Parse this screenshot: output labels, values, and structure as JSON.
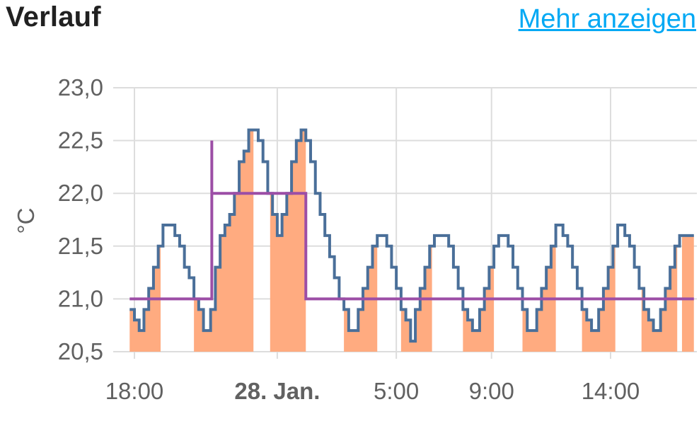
{
  "header": {
    "title": "Verlauf",
    "more_link": "Mehr anzeigen"
  },
  "colors": {
    "temperature": "#4a6f99",
    "target": "#9c4ea6",
    "heating_fill": "#ffab80",
    "grid": "#dddddd",
    "text": "#616161",
    "link": "#03a9f4"
  },
  "chart_data": {
    "type": "line",
    "ylabel": "°C",
    "ylim": [
      20.5,
      23.0
    ],
    "y_ticks": [
      "23,0",
      "22,5",
      "22,0",
      "21,5",
      "21,0",
      "20,5"
    ],
    "x_ticks": [
      {
        "label": "18:00",
        "t": 0,
        "bold": false
      },
      {
        "label": "28. Jan.",
        "t": 6,
        "bold": true
      },
      {
        "label": "5:00",
        "t": 11,
        "bold": false
      },
      {
        "label": "9:00",
        "t": 15,
        "bold": false
      },
      {
        "label": "14:00",
        "t": 20,
        "bold": false
      }
    ],
    "x_unit": "hours after 18:00",
    "xlim": [
      -0.25,
      23.5
    ],
    "grid": true,
    "series": [
      {
        "key": "temperature",
        "style": "step",
        "points": [
          [
            -0.2,
            20.9
          ],
          [
            0.0,
            20.8
          ],
          [
            0.2,
            20.7
          ],
          [
            0.4,
            20.9
          ],
          [
            0.6,
            21.1
          ],
          [
            0.8,
            21.3
          ],
          [
            1.0,
            21.5
          ],
          [
            1.2,
            21.7
          ],
          [
            1.7,
            21.6
          ],
          [
            1.9,
            21.5
          ],
          [
            2.1,
            21.3
          ],
          [
            2.3,
            21.2
          ],
          [
            2.5,
            21.0
          ],
          [
            2.7,
            20.9
          ],
          [
            2.9,
            20.7
          ],
          [
            3.2,
            20.9
          ],
          [
            3.4,
            21.3
          ],
          [
            3.6,
            21.6
          ],
          [
            3.8,
            21.7
          ],
          [
            4.0,
            21.8
          ],
          [
            4.2,
            22.0
          ],
          [
            4.4,
            22.3
          ],
          [
            4.6,
            22.4
          ],
          [
            4.8,
            22.6
          ],
          [
            5.2,
            22.5
          ],
          [
            5.4,
            22.3
          ],
          [
            5.6,
            22.0
          ],
          [
            5.8,
            21.8
          ],
          [
            6.0,
            21.6
          ],
          [
            6.2,
            21.8
          ],
          [
            6.4,
            22.0
          ],
          [
            6.6,
            22.3
          ],
          [
            6.8,
            22.5
          ],
          [
            7.0,
            22.6
          ],
          [
            7.2,
            22.5
          ],
          [
            7.4,
            22.3
          ],
          [
            7.6,
            22.0
          ],
          [
            7.8,
            21.8
          ],
          [
            8.0,
            21.6
          ],
          [
            8.2,
            21.4
          ],
          [
            8.4,
            21.2
          ],
          [
            8.6,
            21.0
          ],
          [
            8.8,
            20.9
          ],
          [
            9.0,
            20.7
          ],
          [
            9.4,
            20.9
          ],
          [
            9.6,
            21.1
          ],
          [
            9.8,
            21.3
          ],
          [
            10.0,
            21.5
          ],
          [
            10.2,
            21.6
          ],
          [
            10.6,
            21.5
          ],
          [
            10.8,
            21.3
          ],
          [
            11.0,
            21.1
          ],
          [
            11.2,
            20.9
          ],
          [
            11.4,
            20.8
          ],
          [
            11.6,
            20.6
          ],
          [
            11.8,
            20.9
          ],
          [
            12.0,
            21.1
          ],
          [
            12.2,
            21.3
          ],
          [
            12.4,
            21.5
          ],
          [
            12.6,
            21.6
          ],
          [
            13.2,
            21.5
          ],
          [
            13.4,
            21.3
          ],
          [
            13.6,
            21.1
          ],
          [
            13.8,
            20.9
          ],
          [
            14.0,
            20.8
          ],
          [
            14.2,
            20.7
          ],
          [
            14.5,
            20.9
          ],
          [
            14.7,
            21.1
          ],
          [
            14.9,
            21.3
          ],
          [
            15.1,
            21.5
          ],
          [
            15.3,
            21.6
          ],
          [
            15.7,
            21.5
          ],
          [
            15.9,
            21.3
          ],
          [
            16.1,
            21.1
          ],
          [
            16.3,
            20.9
          ],
          [
            16.5,
            20.7
          ],
          [
            16.9,
            20.9
          ],
          [
            17.1,
            21.1
          ],
          [
            17.3,
            21.3
          ],
          [
            17.5,
            21.5
          ],
          [
            17.7,
            21.7
          ],
          [
            18.0,
            21.6
          ],
          [
            18.2,
            21.5
          ],
          [
            18.4,
            21.3
          ],
          [
            18.6,
            21.1
          ],
          [
            18.8,
            20.9
          ],
          [
            19.0,
            20.8
          ],
          [
            19.2,
            20.7
          ],
          [
            19.5,
            20.9
          ],
          [
            19.7,
            21.1
          ],
          [
            19.9,
            21.3
          ],
          [
            20.1,
            21.5
          ],
          [
            20.3,
            21.7
          ],
          [
            20.6,
            21.6
          ],
          [
            20.8,
            21.5
          ],
          [
            21.0,
            21.3
          ],
          [
            21.2,
            21.1
          ],
          [
            21.4,
            20.9
          ],
          [
            21.6,
            20.8
          ],
          [
            21.8,
            20.7
          ],
          [
            22.1,
            20.9
          ],
          [
            22.3,
            21.1
          ],
          [
            22.5,
            21.3
          ],
          [
            22.7,
            21.5
          ],
          [
            22.9,
            21.6
          ],
          [
            23.5,
            21.6
          ]
        ]
      },
      {
        "key": "target",
        "style": "step",
        "points": [
          [
            -0.2,
            21.0
          ],
          [
            3.2,
            21.0
          ],
          [
            3.25,
            22.5
          ],
          [
            3.25,
            22.0
          ],
          [
            7.2,
            22.0
          ],
          [
            7.2,
            21.0
          ],
          [
            23.5,
            21.0
          ]
        ]
      }
    ],
    "heating_periods": [
      [
        -0.2,
        1.1
      ],
      [
        2.5,
        5.0
      ],
      [
        5.7,
        7.2
      ],
      [
        8.8,
        10.2
      ],
      [
        11.2,
        12.5
      ],
      [
        13.8,
        15.1
      ],
      [
        16.3,
        17.7
      ],
      [
        18.8,
        20.2
      ],
      [
        21.3,
        22.8
      ],
      [
        23.0,
        23.5
      ]
    ]
  }
}
